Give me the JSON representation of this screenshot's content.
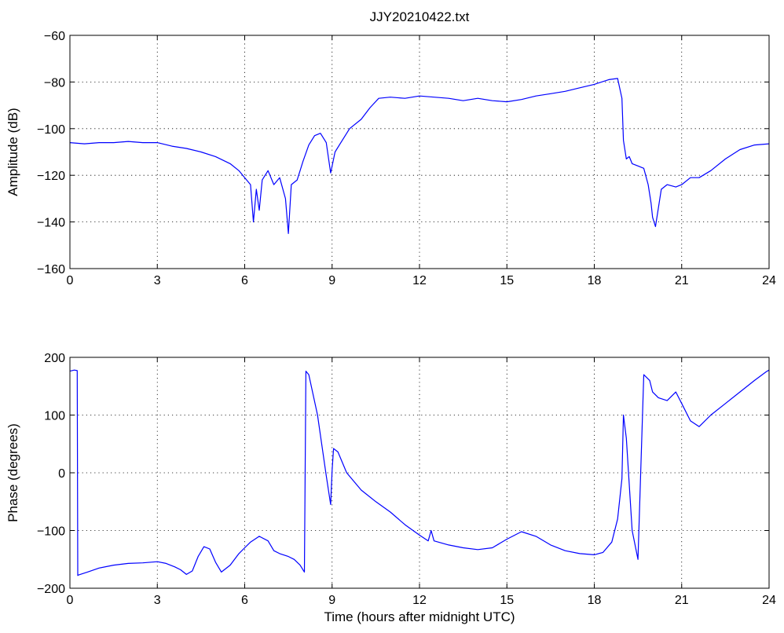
{
  "title": "JJY20210422.txt",
  "colors": {
    "trace": "#0000ff",
    "axis": "#000000",
    "background": "#ffffff"
  },
  "chart_data": [
    {
      "type": "line",
      "xlabel": "",
      "ylabel": "Amplitude (dB)",
      "xlim": [
        0,
        24
      ],
      "ylim": [
        -160,
        -60
      ],
      "xticks": [
        0,
        3,
        6,
        9,
        12,
        15,
        18,
        21,
        24
      ],
      "yticks": [
        -160,
        -140,
        -120,
        -100,
        -80,
        -60
      ],
      "ytick_labels": [
        "−160",
        "−140",
        "−120",
        "−100",
        "−80",
        "−60"
      ],
      "grid": true,
      "series": [
        {
          "x": [
            0,
            0.5,
            1,
            1.5,
            2,
            2.5,
            3,
            3.5,
            4,
            4.5,
            5,
            5.5,
            5.8,
            6.0,
            6.2,
            6.3,
            6.4,
            6.5,
            6.6,
            6.8,
            7.0,
            7.2,
            7.4,
            7.5,
            7.6,
            7.8,
            8.0,
            8.2,
            8.4,
            8.6,
            8.8,
            8.95,
            9.0,
            9.1,
            9.3,
            9.6,
            10,
            10.3,
            10.6,
            11,
            11.5,
            12,
            12.5,
            13,
            13.5,
            14,
            14.5,
            15,
            15.5,
            16,
            16.5,
            17,
            17.5,
            18,
            18.5,
            18.8,
            18.95,
            19.0,
            19.1,
            19.2,
            19.3,
            19.5,
            19.7,
            19.85,
            19.95,
            20.0,
            20.1,
            20.3,
            20.5,
            20.8,
            21.0,
            21.3,
            21.6,
            22.0,
            22.5,
            23.0,
            23.5,
            24.0
          ],
          "y": [
            -106,
            -106.5,
            -106,
            -106,
            -105.5,
            -106,
            -106,
            -107.5,
            -108.5,
            -110,
            -112,
            -115,
            -118,
            -121,
            -124,
            -140,
            -126,
            -135,
            -122,
            -118,
            -124,
            -121,
            -130,
            -145,
            -124,
            -122,
            -114,
            -107,
            -103,
            -102,
            -106,
            -119,
            -116,
            -110,
            -106,
            -100,
            -96,
            -91,
            -87,
            -86.5,
            -87,
            -86,
            -86.5,
            -87,
            -88,
            -87,
            -88,
            -88.5,
            -87.5,
            -86,
            -85,
            -84,
            -82.5,
            -81,
            -79,
            -78.5,
            -87,
            -105,
            -113,
            -112,
            -115,
            -116,
            -117,
            -124,
            -132,
            -138,
            -142,
            -126,
            -124,
            -125,
            -124,
            -121,
            -121,
            -118,
            -113,
            -109,
            -107,
            -106.5
          ]
        }
      ]
    },
    {
      "type": "line",
      "xlabel": "Time (hours after midnight UTC)",
      "ylabel": "Phase (degrees)",
      "xlim": [
        0,
        24
      ],
      "ylim": [
        -200,
        200
      ],
      "xticks": [
        0,
        3,
        6,
        9,
        12,
        15,
        18,
        21,
        24
      ],
      "yticks": [
        -200,
        -100,
        0,
        100,
        200
      ],
      "ytick_labels": [
        "−200",
        "−100",
        "0",
        "100",
        "200"
      ],
      "grid": true,
      "series": [
        {
          "x": [
            0,
            0.15,
            0.25,
            0.27,
            0.3,
            0.6,
            1.0,
            1.5,
            2.0,
            2.5,
            3.0,
            3.3,
            3.6,
            3.8,
            4.0,
            4.2,
            4.4,
            4.6,
            4.8,
            5.0,
            5.2,
            5.5,
            5.8,
            6.0,
            6.2,
            6.5,
            6.8,
            7.0,
            7.2,
            7.5,
            7.7,
            7.9,
            8.05,
            8.1,
            8.2,
            8.5,
            8.8,
            8.95,
            9.0,
            9.05,
            9.2,
            9.5,
            10,
            10.5,
            11,
            11.5,
            12,
            12.3,
            12.4,
            12.5,
            13,
            13.5,
            14,
            14.5,
            15,
            15.5,
            16,
            16.5,
            17,
            17.5,
            18,
            18.3,
            18.6,
            18.8,
            18.95,
            19.0,
            19.1,
            19.3,
            19.5,
            19.7,
            19.9,
            20.0,
            20.2,
            20.5,
            20.8,
            21.0,
            21.3,
            21.6,
            22,
            22.5,
            23,
            23.5,
            23.9,
            24.0
          ],
          "y": [
            176,
            178,
            177,
            -178,
            -177,
            -172,
            -165,
            -160,
            -157,
            -156,
            -154,
            -157,
            -163,
            -168,
            -176,
            -170,
            -145,
            -128,
            -132,
            -155,
            -172,
            -160,
            -140,
            -130,
            -120,
            -110,
            -118,
            -135,
            -140,
            -145,
            -150,
            -160,
            -172,
            176,
            170,
            100,
            -5,
            -55,
            5,
            42,
            36,
            0,
            -30,
            -50,
            -68,
            -90,
            -108,
            -118,
            -100,
            -118,
            -125,
            -130,
            -133,
            -130,
            -115,
            -102,
            -110,
            -125,
            -135,
            -140,
            -142,
            -138,
            -120,
            -80,
            -10,
            100,
            60,
            -100,
            -150,
            170,
            160,
            140,
            130,
            125,
            140,
            120,
            90,
            80,
            100,
            120,
            140,
            160,
            175,
            178
          ]
        }
      ]
    }
  ]
}
